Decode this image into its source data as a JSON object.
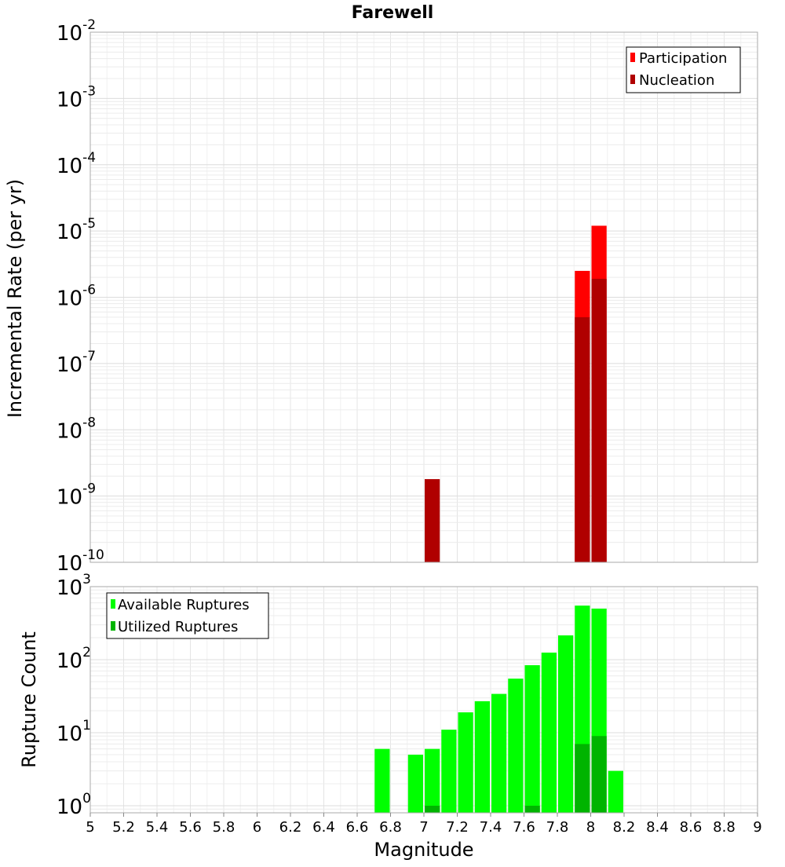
{
  "chart_data": [
    {
      "type": "bar",
      "title": "Farewell",
      "xlabel": "",
      "ylabel": "Incremental Rate (per yr)",
      "yscale": "log",
      "ylim": [
        1e-10,
        0.01
      ],
      "yticks": [
        {
          "base": "10",
          "exp": "-2"
        },
        {
          "base": "10",
          "exp": "-3"
        },
        {
          "base": "10",
          "exp": "-4"
        },
        {
          "base": "10",
          "exp": "-5"
        },
        {
          "base": "10",
          "exp": "-6"
        },
        {
          "base": "10",
          "exp": "-7"
        },
        {
          "base": "10",
          "exp": "-8"
        },
        {
          "base": "10",
          "exp": "-9"
        },
        {
          "base": "10",
          "exp": "-10"
        }
      ],
      "xlim": [
        5,
        9
      ],
      "bin_width": 0.1,
      "grid": true,
      "legend_position": "top-right",
      "series": [
        {
          "name": "Participation",
          "color": "#ff0000",
          "x": [
            7.95,
            8.05
          ],
          "values": [
            2.5e-06,
            1.2e-05
          ]
        },
        {
          "name": "Nucleation",
          "color": "#b00000",
          "x": [
            7.05,
            7.95,
            8.05
          ],
          "values": [
            1.8e-09,
            5e-07,
            1.9e-06
          ]
        }
      ]
    },
    {
      "type": "bar",
      "title": "",
      "xlabel": "Magnitude",
      "ylabel": "Rupture Count",
      "yscale": "log",
      "ylim": [
        0.8,
        1000
      ],
      "yticks": [
        {
          "base": "10",
          "exp": "3"
        },
        {
          "base": "10",
          "exp": "2"
        },
        {
          "base": "10",
          "exp": "1"
        },
        {
          "base": "10",
          "exp": "0"
        }
      ],
      "xlim": [
        5,
        9
      ],
      "xticks": [
        "5",
        "5.2",
        "5.4",
        "5.6",
        "5.8",
        "6",
        "6.2",
        "6.4",
        "6.6",
        "6.8",
        "7",
        "7.2",
        "7.4",
        "7.6",
        "7.8",
        "8",
        "8.2",
        "8.4",
        "8.6",
        "8.8",
        "9"
      ],
      "bin_width": 0.1,
      "grid": true,
      "legend_position": "top-left",
      "series": [
        {
          "name": "Available Ruptures",
          "color": "#00ff00",
          "x": [
            6.75,
            6.95,
            7.05,
            7.15,
            7.25,
            7.35,
            7.45,
            7.55,
            7.65,
            7.75,
            7.85,
            7.95,
            8.05,
            8.15
          ],
          "values": [
            6,
            5,
            6,
            11,
            19,
            27,
            34,
            55,
            84,
            125,
            215,
            550,
            500,
            3
          ]
        },
        {
          "name": "Utilized Ruptures",
          "color": "#00b400",
          "x": [
            7.05,
            7.65,
            7.95,
            8.05
          ],
          "values": [
            1,
            1,
            7,
            9
          ]
        }
      ]
    }
  ]
}
